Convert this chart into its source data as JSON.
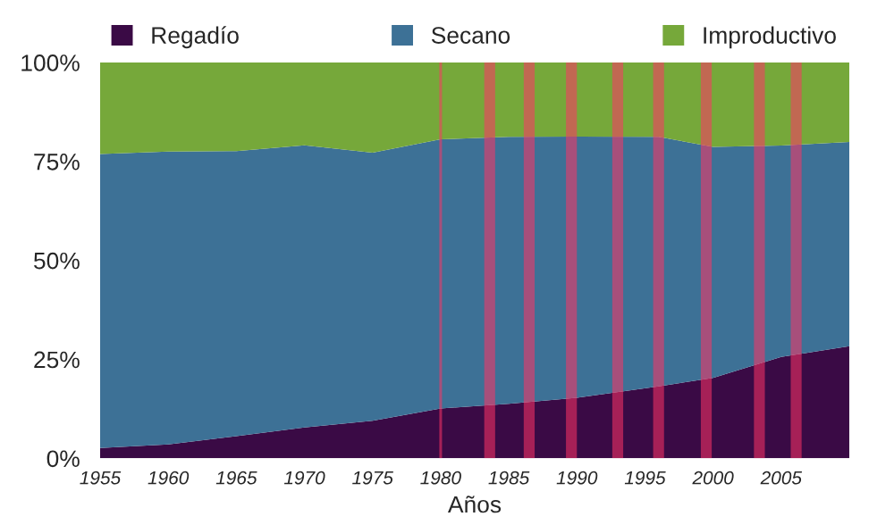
{
  "chart_data": {
    "type": "area",
    "stacked": true,
    "xlabel": "Años",
    "legend": "top",
    "x": [
      1955,
      1960,
      1965,
      1970,
      1975,
      1980,
      1985,
      1990,
      1996,
      2000,
      2005,
      2010
    ],
    "series": [
      {
        "name": "Regadío",
        "color": "#3a0a45",
        "values": [
          2.6,
          3.5,
          5.6,
          7.8,
          9.5,
          12.6,
          13.8,
          15.3,
          18.2,
          20.3,
          25.6,
          28.3
        ]
      },
      {
        "name": "Secano",
        "color": "#3d7196",
        "values": [
          74.3,
          74.0,
          72.0,
          71.3,
          67.7,
          68.0,
          67.4,
          66.0,
          63.0,
          58.4,
          53.4,
          51.6
        ]
      },
      {
        "name": "Improductivo",
        "color": "#76a83a",
        "values": [
          23.1,
          22.5,
          22.4,
          20.9,
          22.8,
          19.4,
          18.8,
          18.7,
          18.8,
          21.3,
          21.0,
          20.1
        ]
      }
    ],
    "xlim": [
      1955,
      2010
    ],
    "xticks": [
      1955,
      1960,
      1965,
      1970,
      1975,
      1980,
      1985,
      1990,
      1995,
      2000,
      2005
    ],
    "ylim": [
      0,
      100
    ],
    "yticks": [
      {
        "value": 0,
        "label": "0%"
      },
      {
        "value": 25,
        "label": "25%"
      },
      {
        "value": 50,
        "label": "50%"
      },
      {
        "value": 75,
        "label": "75%"
      },
      {
        "value": 100,
        "label": "100%"
      }
    ],
    "bands": [
      {
        "axis": "x",
        "from": 1979.9,
        "to": 1980.1,
        "color": "#ff3366"
      },
      {
        "axis": "x",
        "from": 1983.2,
        "to": 1984.0,
        "color": "#ff3366"
      },
      {
        "axis": "x",
        "from": 1986.1,
        "to": 1986.9,
        "color": "#ff3366"
      },
      {
        "axis": "x",
        "from": 1989.2,
        "to": 1990.0,
        "color": "#ff3366"
      },
      {
        "axis": "x",
        "from": 1992.6,
        "to": 1993.4,
        "color": "#ff3366"
      },
      {
        "axis": "x",
        "from": 1995.6,
        "to": 1996.4,
        "color": "#ff3366"
      },
      {
        "axis": "x",
        "from": 1999.1,
        "to": 1999.9,
        "color": "#ff3366"
      },
      {
        "axis": "x",
        "from": 2003.0,
        "to": 2003.8,
        "color": "#ff3366"
      },
      {
        "axis": "x",
        "from": 2005.7,
        "to": 2006.5,
        "color": "#ff3366"
      }
    ]
  }
}
